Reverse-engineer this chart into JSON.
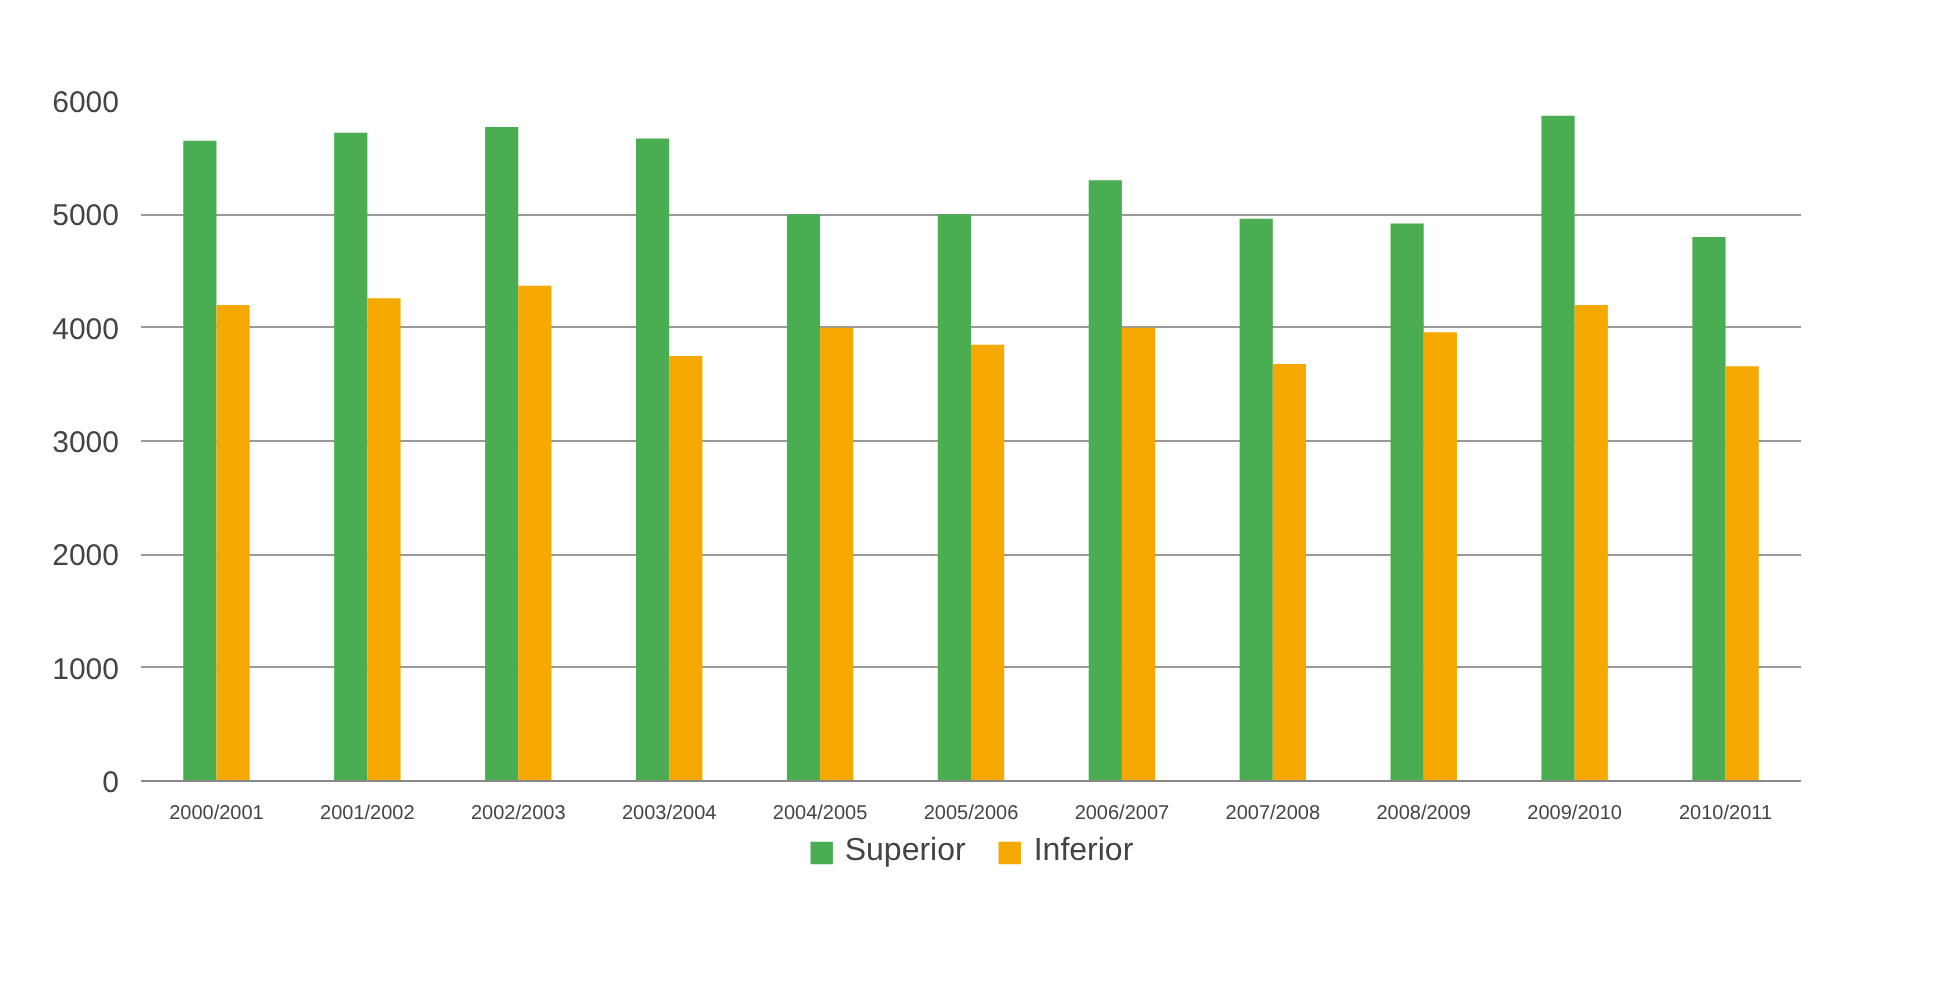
{
  "chart_data": {
    "type": "bar",
    "categories": [
      "2000/2001",
      "2001/2002",
      "2002/2003",
      "2003/2004",
      "2004/2005",
      "2005/2006",
      "2006/2007",
      "2007/2008",
      "2008/2009",
      "2009/2010",
      "2010/2011"
    ],
    "series": [
      {
        "name": "Superior",
        "color": "#4aad52",
        "values": [
          5650,
          5720,
          5770,
          5670,
          5000,
          5000,
          5300,
          4960,
          4920,
          5870,
          4800
        ]
      },
      {
        "name": "Inferior",
        "color": "#f5a800",
        "values": [
          4200,
          4260,
          4370,
          3750,
          4000,
          3850,
          4000,
          3680,
          3960,
          4200,
          3660
        ]
      }
    ],
    "ylim": [
      0,
      6000
    ],
    "yticks": [
      0,
      1000,
      2000,
      3000,
      4000,
      5000,
      6000
    ],
    "grid": "y",
    "legend": "bottom"
  }
}
